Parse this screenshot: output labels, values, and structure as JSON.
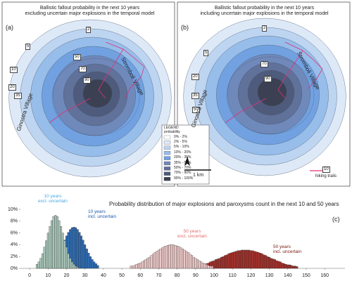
{
  "maps": {
    "panels": [
      {
        "title": "Ballistic fallout probability in the next 10 years\nexcluding uncertain major explosions in the temporal model",
        "label": "(a)",
        "contour_labels": [
          2,
          5,
          10,
          20,
          35,
          50,
          70,
          90
        ],
        "villages": [
          "Stromboli Village",
          "Ginostra Village"
        ]
      },
      {
        "title": "Ballistic fallout probability in the next 10 years\nincluding uncertain major explosions in the temporal model",
        "label": "(b)",
        "contour_labels": [
          2,
          5,
          10,
          20,
          35,
          50,
          70,
          90
        ],
        "villages": [
          "Stromboli Village",
          "Ginostra Village"
        ]
      }
    ],
    "legend": {
      "title": "LEGEND",
      "subtitle": "probability",
      "entries": [
        {
          "label": "0% - 2%",
          "color": "#ffffff"
        },
        {
          "label": "2% - 5%",
          "color": "#dce8f8"
        },
        {
          "label": "5% - 10%",
          "color": "#bcd4f2"
        },
        {
          "label": "10% - 20%",
          "color": "#94bbea"
        },
        {
          "label": "20% - 35%",
          "color": "#6e9fe0"
        },
        {
          "label": "35% - 50%",
          "color": "#7088b8"
        },
        {
          "label": "50% - 70%",
          "color": "#5f6f98"
        },
        {
          "label": "70% - 90%",
          "color": "#4e5a7a"
        },
        {
          "label": "90% - 100%",
          "color": "#3a3f50"
        }
      ]
    },
    "north": "N",
    "scale": "1 km",
    "trails": "hiking trails"
  },
  "chart_data": {
    "type": "histogram",
    "title": "Probability distribution of major explosions and paroxysms count in the next 10 and 50 years",
    "label": "(c)",
    "xlim": [
      -5,
      171
    ],
    "xticks": [
      0,
      10,
      20,
      30,
      40,
      50,
      60,
      70,
      80,
      90,
      100,
      110,
      120,
      130,
      140,
      150,
      160
    ],
    "ylim": [
      0,
      10
    ],
    "yticks": [
      {
        "value": 0,
        "label": "0%"
      },
      {
        "value": 2,
        "label": "2%"
      },
      {
        "value": 4,
        "label": "4%"
      },
      {
        "value": 6,
        "label": "6%"
      },
      {
        "value": 8,
        "label": "8%"
      },
      {
        "value": 10,
        "label": "10%"
      }
    ],
    "series": [
      {
        "name": "10 years\nexcl. uncertain",
        "color": "#a9c6ba",
        "label_color": "#4aa8e0",
        "x": [
          4,
          5,
          6,
          7,
          8,
          9,
          10,
          11,
          12,
          13,
          14,
          15,
          16,
          17,
          18,
          19,
          20,
          21,
          22,
          23,
          24,
          25,
          26
        ],
        "values": [
          0.7,
          1.1,
          1.7,
          2.5,
          3.6,
          4.7,
          6.0,
          7.1,
          8.1,
          8.8,
          9.0,
          8.8,
          8.1,
          7.1,
          6.0,
          4.7,
          3.6,
          2.5,
          1.7,
          1.1,
          0.7,
          0.4,
          0.2
        ]
      },
      {
        "name": "10 years\nincl. uncertain",
        "color": "#2e6db4",
        "label_color": "#1f5aa8",
        "x": [
          11,
          12,
          13,
          14,
          15,
          16,
          17,
          18,
          19,
          20,
          21,
          22,
          23,
          24,
          25,
          26,
          27,
          28,
          29,
          30,
          31,
          32,
          33,
          34,
          35,
          36,
          37
        ],
        "values": [
          0.5,
          0.8,
          1.1,
          1.5,
          2.0,
          2.6,
          3.3,
          4.0,
          4.8,
          5.5,
          6.1,
          6.6,
          6.9,
          7.0,
          6.9,
          6.6,
          6.1,
          5.5,
          4.8,
          4.0,
          3.3,
          2.6,
          2.0,
          1.5,
          1.1,
          0.8,
          0.5
        ]
      },
      {
        "name": "50 years\nexcl. uncertain",
        "color": "#ecc8c8",
        "label_color": "#e07070",
        "x": [
          55,
          56,
          57,
          58,
          59,
          60,
          61,
          62,
          63,
          64,
          65,
          66,
          67,
          68,
          69,
          70,
          71,
          72,
          73,
          74,
          75,
          76,
          77,
          78,
          79,
          80,
          81,
          82,
          83,
          84,
          85,
          86,
          87,
          88,
          89,
          90,
          91,
          92,
          93,
          94,
          95,
          96,
          97,
          98,
          99
        ],
        "values": [
          0.4,
          0.4,
          0.5,
          0.7,
          0.8,
          0.9,
          1.1,
          1.3,
          1.5,
          1.7,
          1.9,
          2.2,
          2.4,
          2.7,
          2.9,
          3.1,
          3.3,
          3.5,
          3.7,
          3.8,
          3.9,
          4.0,
          4.0,
          4.0,
          3.9,
          3.8,
          3.7,
          3.5,
          3.3,
          3.1,
          2.9,
          2.7,
          2.4,
          2.2,
          1.9,
          1.7,
          1.5,
          1.3,
          1.1,
          0.9,
          0.8,
          0.7,
          0.5,
          0.4,
          0.4
        ]
      },
      {
        "name": "50 years\nincl. uncertain",
        "color": "#a3302a",
        "label_color": "#7a1a10",
        "x": [
          89,
          90,
          91,
          92,
          93,
          94,
          95,
          96,
          97,
          98,
          99,
          100,
          101,
          102,
          103,
          104,
          105,
          106,
          107,
          108,
          109,
          110,
          111,
          112,
          113,
          114,
          115,
          116,
          117,
          118,
          119,
          120,
          121,
          122,
          123,
          124,
          125,
          126,
          127,
          128,
          129,
          130,
          131,
          132,
          133,
          134,
          135,
          136,
          137,
          138,
          139,
          140,
          141,
          142,
          143,
          144,
          145
        ],
        "values": [
          0.3,
          0.4,
          0.4,
          0.5,
          0.6,
          0.6,
          0.7,
          0.8,
          0.9,
          1.1,
          1.2,
          1.3,
          1.5,
          1.6,
          1.7,
          1.9,
          2.0,
          2.2,
          2.3,
          2.5,
          2.6,
          2.7,
          2.8,
          2.9,
          3.0,
          3.0,
          3.1,
          3.1,
          3.1,
          3.1,
          3.1,
          3.0,
          3.0,
          2.9,
          2.8,
          2.7,
          2.6,
          2.5,
          2.3,
          2.2,
          2.0,
          1.9,
          1.7,
          1.6,
          1.5,
          1.3,
          1.2,
          1.1,
          0.9,
          0.8,
          0.7,
          0.6,
          0.6,
          0.5,
          0.4,
          0.4,
          0.3
        ]
      }
    ]
  }
}
